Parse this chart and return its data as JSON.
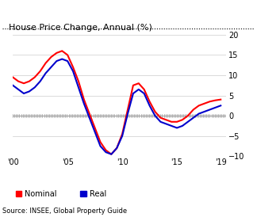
{
  "title": "House Price Change, Annual (%)",
  "source": "Source: INSEE, Global Property Guide",
  "xlim": [
    2000,
    2019.5
  ],
  "ylim": [
    -10,
    20
  ],
  "yticks": [
    -10,
    -5,
    0,
    5,
    10,
    15,
    20
  ],
  "xticks": [
    2000,
    2005,
    2010,
    2015,
    2019
  ],
  "xtick_labels": [
    "'00",
    "'05",
    "'10",
    "'15",
    "'19"
  ],
  "nominal_color": "#FF0000",
  "real_color": "#0000CC",
  "background_color": "#FFFFFF",
  "nominal_x": [
    2000,
    2000.5,
    2001,
    2001.5,
    2002,
    2002.5,
    2003,
    2003.5,
    2004,
    2004.5,
    2005,
    2005.5,
    2006,
    2006.5,
    2007,
    2007.5,
    2008,
    2008.5,
    2009,
    2009.5,
    2010,
    2010.5,
    2011,
    2011.5,
    2012,
    2012.5,
    2013,
    2013.5,
    2014,
    2014.5,
    2015,
    2015.5,
    2016,
    2016.5,
    2017,
    2017.5,
    2018,
    2018.5,
    2019
  ],
  "nominal_y": [
    9.5,
    8.5,
    8.0,
    8.5,
    9.5,
    11.0,
    13.0,
    14.5,
    15.5,
    16.0,
    15.0,
    12.0,
    8.5,
    4.0,
    0.5,
    -3.0,
    -6.5,
    -8.5,
    -9.5,
    -8.0,
    -4.5,
    1.5,
    7.5,
    8.0,
    6.5,
    3.5,
    1.0,
    -0.5,
    -1.0,
    -1.5,
    -1.5,
    -1.0,
    0.0,
    1.5,
    2.5,
    3.0,
    3.5,
    3.8,
    4.0
  ],
  "real_x": [
    2000,
    2000.5,
    2001,
    2001.5,
    2002,
    2002.5,
    2003,
    2003.5,
    2004,
    2004.5,
    2005,
    2005.5,
    2006,
    2006.5,
    2007,
    2007.5,
    2008,
    2008.5,
    2009,
    2009.5,
    2010,
    2010.5,
    2011,
    2011.5,
    2012,
    2012.5,
    2013,
    2013.5,
    2014,
    2014.5,
    2015,
    2015.5,
    2016,
    2016.5,
    2017,
    2017.5,
    2018,
    2018.5,
    2019
  ],
  "real_y": [
    7.5,
    6.5,
    5.5,
    6.0,
    7.0,
    8.5,
    10.5,
    12.0,
    13.5,
    14.0,
    13.5,
    11.0,
    7.0,
    3.0,
    -0.5,
    -4.0,
    -7.5,
    -9.0,
    -9.5,
    -8.0,
    -5.0,
    0.5,
    5.5,
    6.5,
    5.5,
    2.5,
    0.0,
    -1.5,
    -2.0,
    -2.5,
    -3.0,
    -2.5,
    -1.5,
    -0.5,
    0.5,
    1.0,
    1.5,
    2.0,
    2.5
  ]
}
